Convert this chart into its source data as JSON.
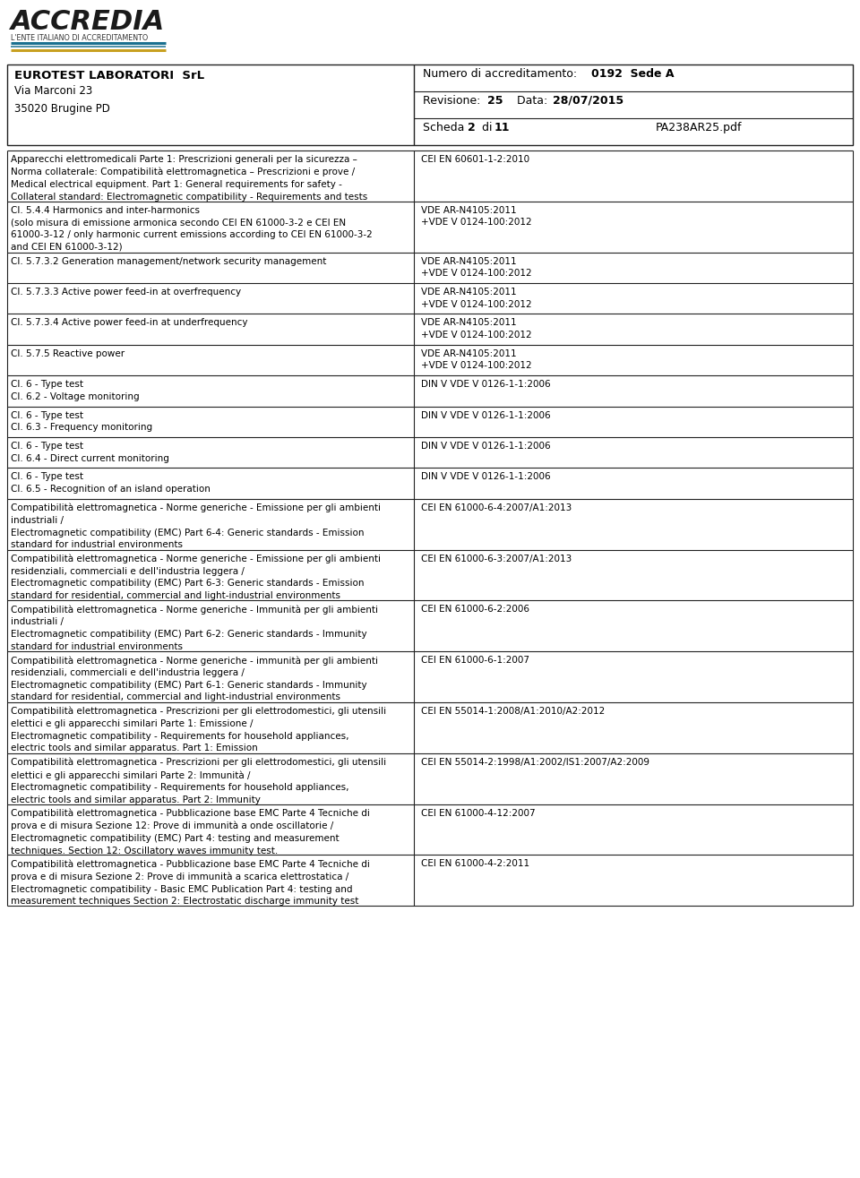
{
  "logo_text": "ACCREDIA",
  "logo_subtext": "L'ENTE ITALIANO DI ACCREDITAMENTO",
  "company_name": "EUROTEST LABORATORI  SrL",
  "company_address": "Via Marconi 23\n35020 Brugine PD",
  "accreditation_label": "Numero di accreditamento:",
  "accreditation_number": "0192",
  "accreditation_sede": "Sede",
  "accreditation_sede_val": "A",
  "revisione_label": "Revisione:",
  "revisione_val": "25",
  "data_label": "Data:",
  "data_val": "28/07/2015",
  "scheda_label": "Scheda",
  "scheda_val": "2",
  "scheda_di": "di",
  "scheda_total": "11",
  "scheda_file": "PA238AR25.pdf",
  "rows": [
    {
      "left": "Apparecchi elettromedicali Parte 1: Prescrizioni generali per la sicurezza –\nNorma collaterale: Compatibilità elettromagnetica – Prescrizioni e prove /\nMedical electrical equipment. Part 1: General requirements for safety -\nCollateral standard: Electromagnetic compatibility - Requirements and tests",
      "right": "CEI EN 60601-1-2:2010"
    },
    {
      "left": "Cl. 5.4.4 Harmonics and inter-harmonics\n(solo misura di emissione armonica secondo CEI EN 61000-3-2 e CEI EN\n61000-3-12 / only harmonic current emissions according to CEI EN 61000-3-2\nand CEI EN 61000-3-12)",
      "right": "VDE AR-N4105:2011\n+VDE V 0124-100:2012"
    },
    {
      "left": "Cl. 5.7.3.2 Generation management/network security management",
      "right": "VDE AR-N4105:2011\n+VDE V 0124-100:2012"
    },
    {
      "left": "Cl. 5.7.3.3 Active power feed-in at overfrequency",
      "right": "VDE AR-N4105:2011\n+VDE V 0124-100:2012"
    },
    {
      "left": "Cl. 5.7.3.4 Active power feed-in at underfrequency",
      "right": "VDE AR-N4105:2011\n+VDE V 0124-100:2012"
    },
    {
      "left": "Cl. 5.7.5 Reactive power",
      "right": "VDE AR-N4105:2011\n+VDE V 0124-100:2012"
    },
    {
      "left": "Cl. 6 - Type test\nCl. 6.2 - Voltage monitoring",
      "right": "DIN V VDE V 0126-1-1:2006"
    },
    {
      "left": "Cl. 6 - Type test\nCl. 6.3 - Frequency monitoring",
      "right": "DIN V VDE V 0126-1-1:2006"
    },
    {
      "left": "Cl. 6 - Type test\nCl. 6.4 - Direct current monitoring",
      "right": "DIN V VDE V 0126-1-1:2006"
    },
    {
      "left": "Cl. 6 - Type test\nCl. 6.5 - Recognition of an island operation",
      "right": "DIN V VDE V 0126-1-1:2006"
    },
    {
      "left": "Compatibilità elettromagnetica - Norme generiche - Emissione per gli ambienti\nindustriali /\nElectromagnetic compatibility (EMC) Part 6-4: Generic standards - Emission\nstandard for industrial environments",
      "right": "CEI EN 61000-6-4:2007/A1:2013"
    },
    {
      "left": "Compatibilità elettromagnetica - Norme generiche - Emissione per gli ambienti\nresidenziali, commerciali e dell'industria leggera /\nElectromagnetic compatibility (EMC) Part 6-3: Generic standards - Emission\nstandard for residential, commercial and light-industrial environments",
      "right": "CEI EN 61000-6-3:2007/A1:2013"
    },
    {
      "left": "Compatibilità elettromagnetica - Norme generiche - Immunità per gli ambienti\nindustriali /\nElectromagnetic compatibility (EMC) Part 6-2: Generic standards - Immunity\nstandard for industrial environments",
      "right": "CEI EN 61000-6-2:2006"
    },
    {
      "left": "Compatibilità elettromagnetica - Norme generiche - immunità per gli ambienti\nresidenziali, commerciali e dell'industria leggera /\nElectromagnetic compatibility (EMC) Part 6-1: Generic standards - Immunity\nstandard for residential, commercial and light-industrial environments",
      "right": "CEI EN 61000-6-1:2007"
    },
    {
      "left": "Compatibilità elettromagnetica - Prescrizioni per gli elettrodomestici, gli utensili\nelettici e gli apparecchi similari Parte 1: Emissione /\nElectromagnetic compatibility - Requirements for household appliances,\nelectric tools and similar apparatus. Part 1: Emission",
      "right": "CEI EN 55014-1:2008/A1:2010/A2:2012"
    },
    {
      "left": "Compatibilità elettromagnetica - Prescrizioni per gli elettrodomestici, gli utensili\nelettici e gli apparecchi similari Parte 2: Immunità /\nElectromagnetic compatibility - Requirements for household appliances,\nelectric tools and similar apparatus. Part 2: Immunity",
      "right": "CEI EN 55014-2:1998/A1:2002/IS1:2007/A2:2009"
    },
    {
      "left": "Compatibilità elettromagnetica - Pubblicazione base EMC Parte 4 Tecniche di\nprova e di misura Sezione 12: Prove di immunità a onde oscillatorie /\nElectromagnetic compatibility (EMC) Part 4: testing and measurement\ntechniques. Section 12: Oscillatory waves immunity test.",
      "right": "CEI EN 61000-4-12:2007"
    },
    {
      "left": "Compatibilità elettromagnetica - Pubblicazione base EMC Parte 4 Tecniche di\nprova e di misura Sezione 2: Prove di immunità a scarica elettrostatica /\nElectromagnetic compatibility - Basic EMC Publication Part 4: testing and\nmeasurement techniques Section 2: Electrostatic discharge immunity test",
      "right": "CEI EN 61000-4-2:2011"
    }
  ]
}
